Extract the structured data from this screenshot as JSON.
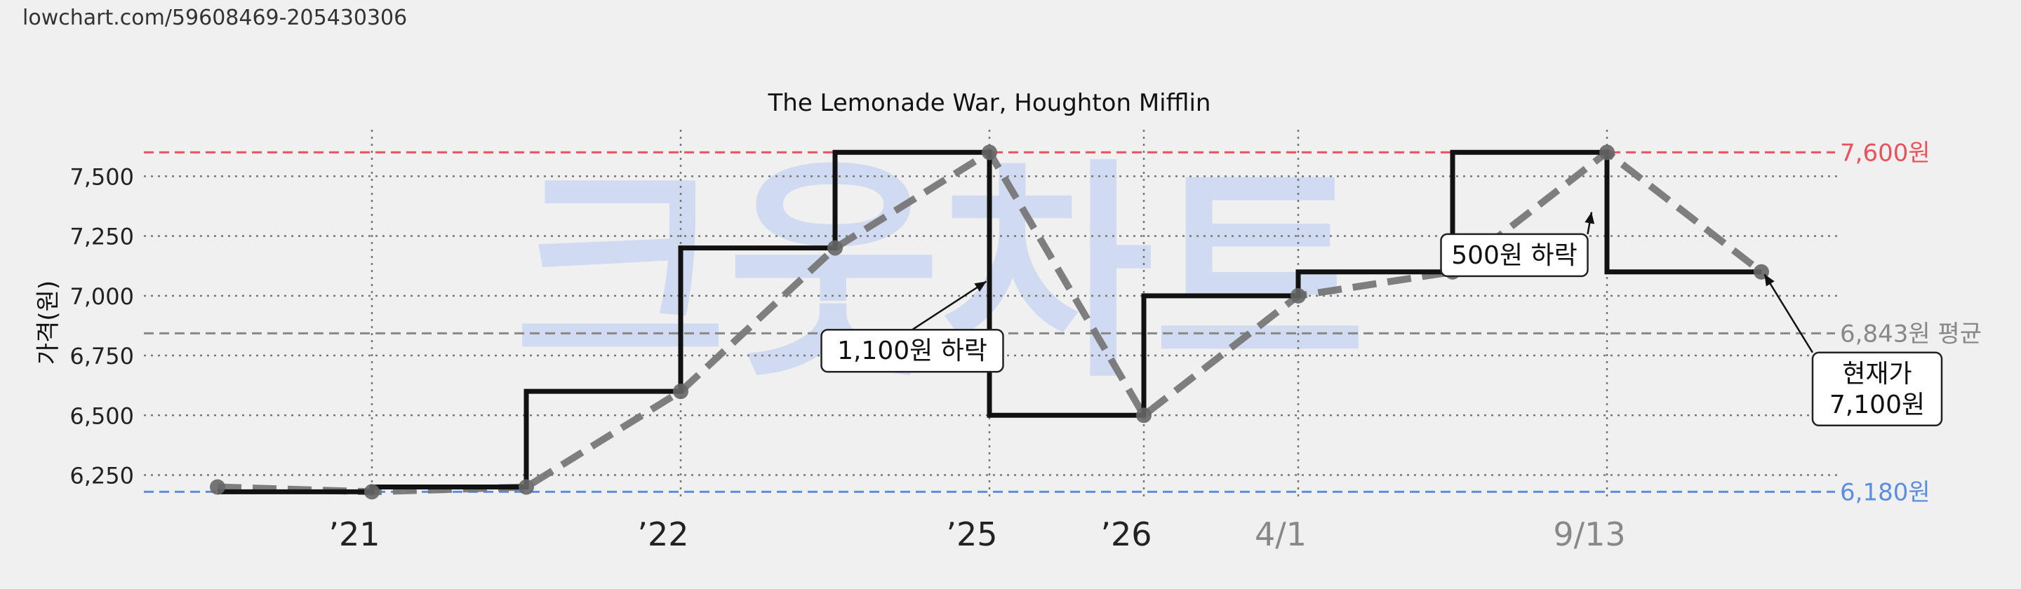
{
  "url": "lowchart.com/59608469-205430306",
  "watermark": "크웃차트",
  "chart_data": {
    "type": "line",
    "title": "The Lemonade War, Houghton Mifflin",
    "ylabel": "가격(원)",
    "xlabel": "",
    "ylim": [
      6140,
      7680
    ],
    "y_ticks": [
      6250,
      6500,
      6750,
      7000,
      7250,
      7500
    ],
    "y_tick_labels": [
      "6,250",
      "6,500",
      "6,750",
      "7,000",
      "7,250",
      "7,500"
    ],
    "x_ticks": [
      {
        "label": "’21",
        "x": 1,
        "color": "#222222"
      },
      {
        "label": "’22",
        "x": 3,
        "color": "#222222"
      },
      {
        "label": "’25",
        "x": 5,
        "color": "#222222"
      },
      {
        "label": "’26",
        "x": 6,
        "color": "#222222"
      },
      {
        "label": "4/1",
        "x": 7,
        "color": "#888888"
      },
      {
        "label": "9/13",
        "x": 9,
        "color": "#888888"
      }
    ],
    "series": [
      {
        "style": "step",
        "color": "#111111",
        "points": [
          [
            0,
            6180
          ],
          [
            1,
            6200
          ],
          [
            2,
            6600
          ],
          [
            3,
            7200
          ],
          [
            4,
            7600
          ],
          [
            5,
            6500
          ],
          [
            6,
            7000
          ],
          [
            7,
            7100
          ],
          [
            8,
            7600
          ],
          [
            9,
            7100
          ],
          [
            10,
            7100
          ]
        ]
      },
      {
        "style": "dashed",
        "color": "#777777",
        "points": [
          [
            0,
            6200
          ],
          [
            1,
            6180
          ],
          [
            2,
            6200
          ],
          [
            3,
            6600
          ],
          [
            4,
            7200
          ],
          [
            5,
            7600
          ],
          [
            6,
            6500
          ],
          [
            7,
            7000
          ],
          [
            8,
            7100
          ],
          [
            9,
            7600
          ],
          [
            10,
            7100
          ]
        ]
      }
    ],
    "reference_lines": [
      {
        "value": 7600,
        "label": "7,600원",
        "color": "#e8525a"
      },
      {
        "value": 6843,
        "label": "6,843원 평균",
        "color": "#888888"
      },
      {
        "value": 6180,
        "label": "6,180원",
        "color": "#5b8ee0"
      }
    ],
    "annotations": [
      {
        "text": "1,100원 하락",
        "lines": [
          "1,100원 하락"
        ],
        "x": 4.5,
        "y": 6770,
        "arrow_to": [
          4.98,
          7060
        ]
      },
      {
        "text": "500원 하락",
        "lines": [
          "500원 하락"
        ],
        "x": 8.4,
        "y": 7170,
        "arrow_to": [
          8.9,
          7350
        ]
      },
      {
        "text": "현재가 7,100원",
        "lines": [
          "현재가",
          "7,100원"
        ],
        "x": 10.75,
        "y": 6610,
        "arrow_to": [
          10.02,
          7090
        ]
      }
    ],
    "grid": true,
    "legend": "none"
  }
}
